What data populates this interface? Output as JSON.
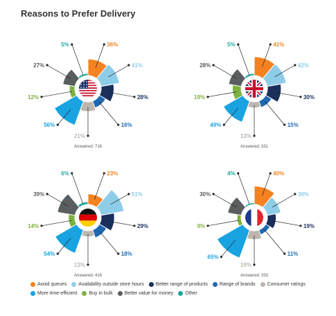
{
  "page": {
    "title": "Reasons to Prefer Delivery"
  },
  "categories": [
    {
      "key": "avoid",
      "label": "Avoid queues",
      "color": "#F58220"
    },
    {
      "key": "avail",
      "label": "Availability outside store hours",
      "color": "#8ECDE8"
    },
    {
      "key": "products",
      "label": "Better range of products",
      "color": "#1B2F5B"
    },
    {
      "key": "brands",
      "label": "Range of brands",
      "color": "#1E68B2"
    },
    {
      "key": "ratings",
      "label": "Consumer ratings",
      "color": "#BDB6AE"
    },
    {
      "key": "time",
      "label": "More time-efficient",
      "color": "#19A3E1"
    },
    {
      "key": "bulk",
      "label": "Buy in bulk",
      "color": "#7FB13F"
    },
    {
      "key": "value",
      "label": "Better value for money",
      "color": "#5A5E60"
    },
    {
      "key": "other",
      "label": "Other",
      "color": "#1FA79D"
    }
  ],
  "legend_rows": [
    [
      "avoid",
      "avail",
      "products",
      "brands",
      "ratings"
    ],
    [
      "time",
      "bulk",
      "value",
      "other"
    ]
  ],
  "chart_data": [
    {
      "type": "pie",
      "variant": "radial-bar",
      "flag": "us-flag",
      "answered": "Answered: 716",
      "series": [
        {
          "key": "avoid",
          "value": 36,
          "label": "36%"
        },
        {
          "key": "avail",
          "value": 41,
          "label": "41%"
        },
        {
          "key": "products",
          "value": 28,
          "label": "28%"
        },
        {
          "key": "brands",
          "value": 16,
          "label": "16%"
        },
        {
          "key": "ratings",
          "value": 21,
          "label": "21%"
        },
        {
          "key": "time",
          "value": 56,
          "label": "56%"
        },
        {
          "key": "bulk",
          "value": 12,
          "label": "12%"
        },
        {
          "key": "value",
          "value": 27,
          "label": "27%"
        },
        {
          "key": "other",
          "value": 5,
          "label": "5%"
        }
      ]
    },
    {
      "type": "pie",
      "variant": "radial-bar",
      "flag": "uk-flag",
      "answered": "Answered: 331",
      "series": [
        {
          "key": "avoid",
          "value": 41,
          "label": "41%"
        },
        {
          "key": "avail",
          "value": 42,
          "label": "42%"
        },
        {
          "key": "products",
          "value": 30,
          "label": "30%"
        },
        {
          "key": "brands",
          "value": 15,
          "label": "15%"
        },
        {
          "key": "ratings",
          "value": 13,
          "label": "13%"
        },
        {
          "key": "time",
          "value": 49,
          "label": "49%"
        },
        {
          "key": "bulk",
          "value": 19,
          "label": "19%"
        },
        {
          "key": "value",
          "value": 28,
          "label": "28%"
        },
        {
          "key": "other",
          "value": 5,
          "label": "5%"
        }
      ]
    },
    {
      "type": "pie",
      "variant": "radial-bar",
      "flag": "germany-flag",
      "answered": "Answered: 416",
      "series": [
        {
          "key": "avoid",
          "value": 23,
          "label": "23%"
        },
        {
          "key": "avail",
          "value": 51,
          "label": "51%"
        },
        {
          "key": "products",
          "value": 29,
          "label": "29%"
        },
        {
          "key": "brands",
          "value": 18,
          "label": "18%"
        },
        {
          "key": "ratings",
          "value": 13,
          "label": "13%"
        },
        {
          "key": "time",
          "value": 54,
          "label": "54%"
        },
        {
          "key": "bulk",
          "value": 14,
          "label": "14%"
        },
        {
          "key": "value",
          "value": 39,
          "label": "39%"
        },
        {
          "key": "other",
          "value": 6,
          "label": "6%"
        }
      ]
    },
    {
      "type": "pie",
      "variant": "radial-bar",
      "flag": "france-flag",
      "answered": "Answered: 333",
      "series": [
        {
          "key": "avoid",
          "value": 40,
          "label": "40%"
        },
        {
          "key": "avail",
          "value": 30,
          "label": "30%"
        },
        {
          "key": "products",
          "value": 19,
          "label": "19%"
        },
        {
          "key": "brands",
          "value": 11,
          "label": "11%"
        },
        {
          "key": "ratings",
          "value": 19,
          "label": "19%"
        },
        {
          "key": "time",
          "value": 65,
          "label": "65%"
        },
        {
          "key": "bulk",
          "value": 9,
          "label": "9%"
        },
        {
          "key": "value",
          "value": 30,
          "label": "30%"
        },
        {
          "key": "other",
          "value": 4,
          "label": "4%"
        }
      ]
    }
  ]
}
